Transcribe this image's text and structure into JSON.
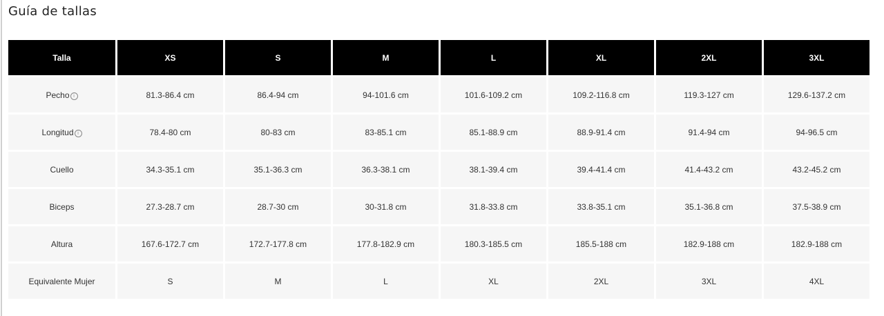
{
  "title": "Guía de tallas",
  "table": {
    "headers": [
      "Talla",
      "XS",
      "S",
      "M",
      "L",
      "XL",
      "2XL",
      "3XL"
    ],
    "rows": [
      {
        "label": "Pecho",
        "info": true,
        "cells": [
          "81.3-86.4 cm",
          "86.4-94 cm",
          "94-101.6 cm",
          "101.6-109.2 cm",
          "109.2-116.8 cm",
          "119.3-127 cm",
          "129.6-137.2 cm"
        ]
      },
      {
        "label": "Longitud",
        "info": true,
        "cells": [
          "78.4-80 cm",
          "80-83 cm",
          "83-85.1 cm",
          "85.1-88.9 cm",
          "88.9-91.4 cm",
          "91.4-94 cm",
          "94-96.5 cm"
        ]
      },
      {
        "label": "Cuello",
        "info": false,
        "cells": [
          "34.3-35.1 cm",
          "35.1-36.3 cm",
          "36.3-38.1 cm",
          "38.1-39.4 cm",
          "39.4-41.4 cm",
          "41.4-43.2 cm",
          "43.2-45.2 cm"
        ]
      },
      {
        "label": "Biceps",
        "info": false,
        "cells": [
          "27.3-28.7 cm",
          "28.7-30 cm",
          "30-31.8 cm",
          "31.8-33.8 cm",
          "33.8-35.1 cm",
          "35.1-36.8 cm",
          "37.5-38.9 cm"
        ]
      },
      {
        "label": "Altura",
        "info": false,
        "cells": [
          "167.6-172.7 cm",
          "172.7-177.8 cm",
          "177.8-182.9 cm",
          "180.3-185.5 cm",
          "185.5-188 cm",
          "182.9-188 cm",
          "182.9-188 cm"
        ]
      },
      {
        "label": "Equivalente Mujer",
        "info": false,
        "cells": [
          "S",
          "M",
          "L",
          "XL",
          "2XL",
          "3XL",
          "4XL"
        ]
      }
    ]
  },
  "info_icon": "ⓘ"
}
